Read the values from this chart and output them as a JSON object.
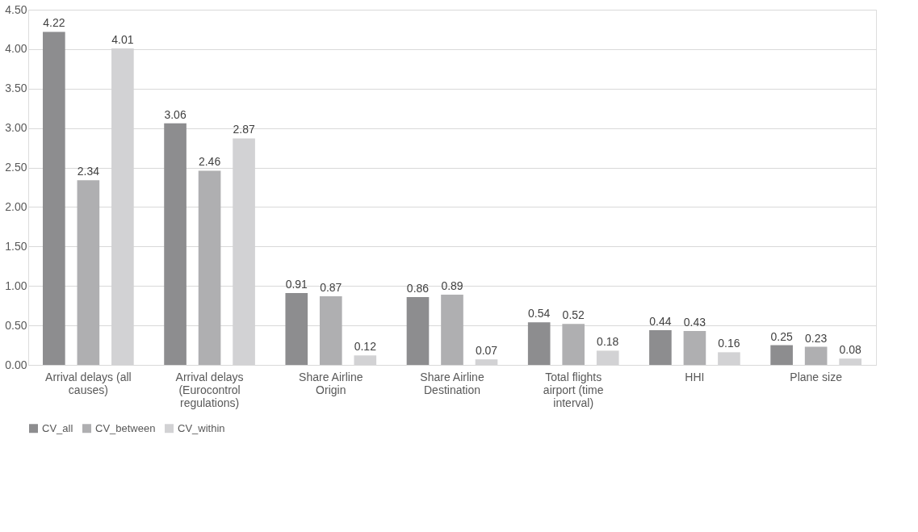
{
  "chart_data": {
    "type": "bar",
    "categories": [
      "Arrival delays (all causes)",
      "Arrival delays (Eurocontrol regulations)",
      "Share Airline Origin",
      "Share Airline Destination",
      "Total flights airport  (time interval)",
      "HHI",
      "Plane size"
    ],
    "series": [
      {
        "name": "CV_all",
        "color": "#8d8d8f",
        "values": [
          4.22,
          3.06,
          0.91,
          0.86,
          0.54,
          0.44,
          0.25
        ]
      },
      {
        "name": "CV_between",
        "color": "#afafb1",
        "values": [
          2.34,
          2.46,
          0.87,
          0.89,
          0.52,
          0.43,
          0.23
        ]
      },
      {
        "name": "CV_within",
        "color": "#d2d2d4",
        "values": [
          4.01,
          2.87,
          0.12,
          0.07,
          0.18,
          0.16,
          0.08
        ]
      }
    ],
    "ylim": [
      0,
      4.5
    ],
    "yticks": [
      {
        "value": 0,
        "label": "0.00"
      },
      {
        "value": 0.5,
        "label": "0.50"
      },
      {
        "value": 1,
        "label": "1.00"
      },
      {
        "value": 1.5,
        "label": "1.50"
      },
      {
        "value": 2,
        "label": "2.00"
      },
      {
        "value": 2.5,
        "label": "2.50"
      },
      {
        "value": 3,
        "label": "3.00"
      },
      {
        "value": 3.5,
        "label": "3.50"
      },
      {
        "value": 4,
        "label": "4.00"
      },
      {
        "value": 4.5,
        "label": "4.50"
      }
    ],
    "grid": "y",
    "legend": "bottom",
    "data_labels": true
  }
}
